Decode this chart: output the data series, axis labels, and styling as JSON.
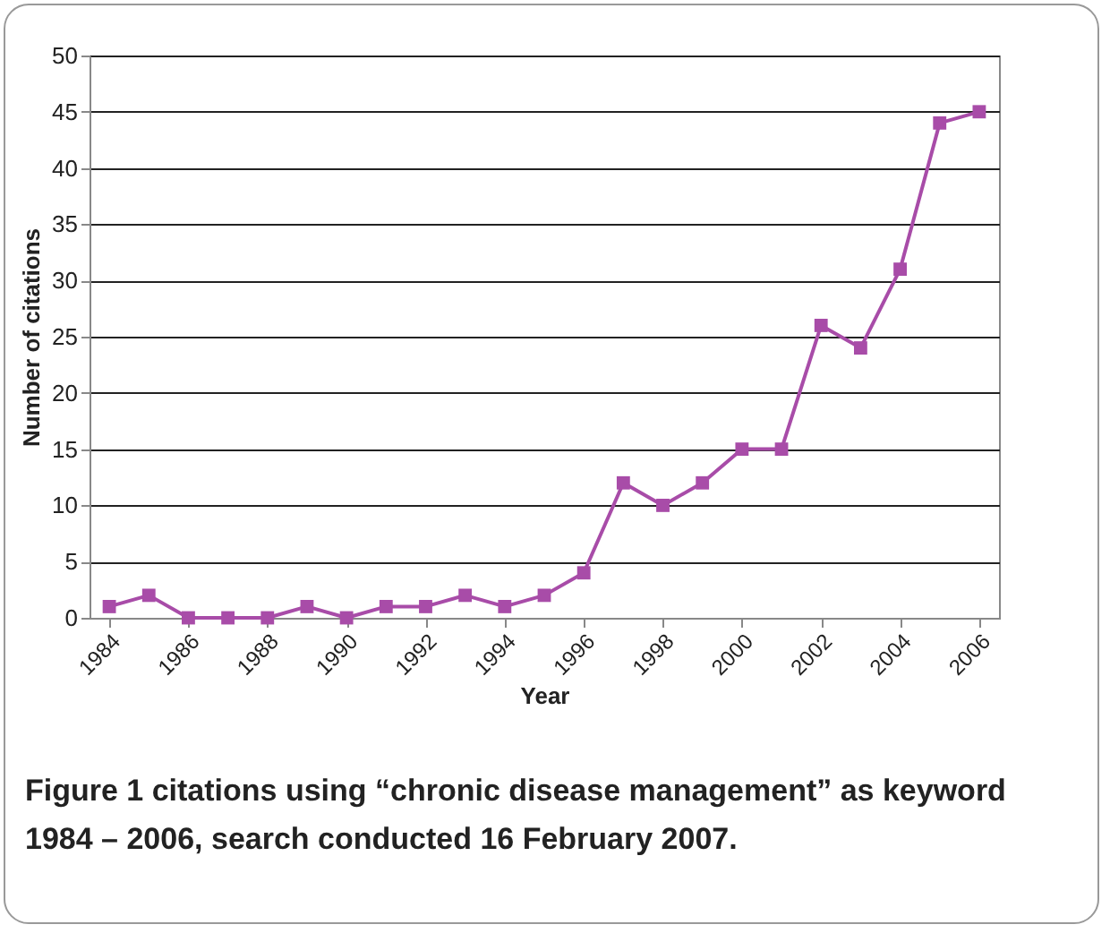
{
  "chart_data": {
    "type": "line",
    "xlabel": "Year",
    "ylabel": "Number of citations",
    "annotations": [
      "Figure 1 citations using “chronic disease management” as keyword 1984 – 2006, search conducted 16 February 2007."
    ],
    "x": [
      1984,
      1985,
      1986,
      1987,
      1988,
      1989,
      1990,
      1991,
      1992,
      1993,
      1994,
      1995,
      1996,
      1997,
      1998,
      1999,
      2000,
      2001,
      2002,
      2003,
      2004,
      2005,
      2006
    ],
    "series": [
      {
        "color": "#a84ca8",
        "values": [
          1,
          2,
          0,
          0,
          0,
          1,
          0,
          1,
          1,
          2,
          1,
          2,
          4,
          12,
          10,
          12,
          15,
          15,
          26,
          24,
          31,
          44,
          45
        ]
      }
    ],
    "xlim": [
      1983.5,
      2006.5
    ],
    "xticks": [
      1984,
      1986,
      1988,
      1990,
      1992,
      1994,
      1996,
      1998,
      2000,
      2002,
      2004,
      2006
    ],
    "ylim": [
      0,
      50
    ],
    "yticks": [
      0,
      5,
      10,
      15,
      20,
      25,
      30,
      35,
      40,
      45,
      50
    ],
    "grid": "y",
    "marker": "square",
    "line_style": "solid",
    "legend": false
  }
}
